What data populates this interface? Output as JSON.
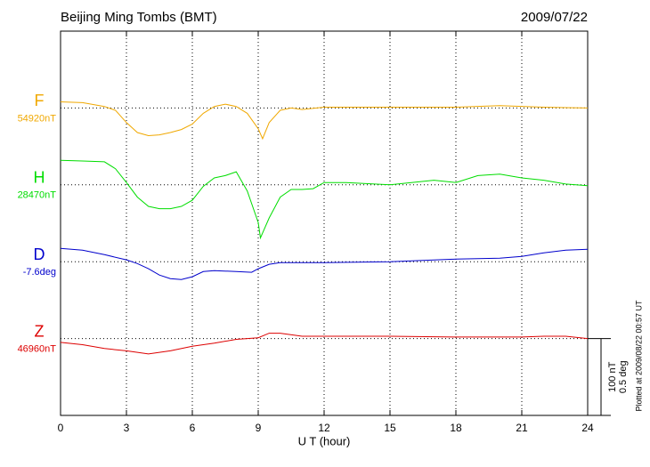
{
  "chart_data": {
    "type": "line",
    "title": "Beijing Ming Tombs (BMT)",
    "date": "2009/07/22",
    "xlabel": "U T (hour)",
    "footnote": "Plotted at 2009/08/22 00:57 UT",
    "xlim": [
      0,
      24
    ],
    "xticks": [
      0,
      3,
      6,
      9,
      12,
      15,
      18,
      21,
      24
    ],
    "grid": true,
    "scale_bar": [
      {
        "value": 100,
        "label": "100 nT"
      },
      {
        "value": 0.5,
        "label": "0.5 deg"
      }
    ],
    "series": [
      {
        "name": "F",
        "baseline_label": "54920nT",
        "color": "#f0a800",
        "ylim": [
          -400,
          100
        ],
        "x": [
          0,
          1,
          2,
          2.5,
          3,
          3.5,
          4,
          4.5,
          5,
          5.5,
          6,
          6.5,
          7,
          7.5,
          8,
          8.5,
          9,
          9.2,
          9.5,
          10,
          10.5,
          11,
          12,
          14,
          16,
          18,
          20,
          22,
          24
        ],
        "values": [
          8,
          7,
          2,
          -3,
          -19,
          -32,
          -36,
          -35,
          -32,
          -28,
          -21,
          -7,
          2,
          5,
          2,
          -7,
          -27,
          -40,
          -19,
          -3,
          0,
          -2,
          1,
          1,
          1,
          1,
          3,
          1,
          0
        ]
      },
      {
        "name": "H",
        "baseline_label": "28470nT",
        "color": "#00dd00",
        "ylim": [
          -300,
          200
        ],
        "x": [
          0,
          1,
          2,
          2.5,
          3,
          3.5,
          4,
          4.5,
          5,
          5.5,
          6,
          6.5,
          7,
          7.5,
          8,
          8.5,
          9,
          9.1,
          9.5,
          10,
          10.5,
          11,
          11.5,
          12,
          13,
          15,
          17,
          18,
          19,
          20,
          21,
          22,
          23,
          24
        ],
        "values": [
          32,
          31,
          30,
          21,
          3,
          -16,
          -28,
          -31,
          -31,
          -28,
          -20,
          -2,
          9,
          12,
          17,
          -8,
          -49,
          -69,
          -43,
          -16,
          -6,
          -6,
          -5,
          3,
          3,
          0,
          6,
          3,
          12,
          14,
          9,
          6,
          1,
          -1
        ]
      },
      {
        "name": "D",
        "baseline_label": "-7.6deg",
        "color": "#0000cc",
        "ylim": [
          -1.0,
          1.5
        ],
        "x": [
          0,
          1,
          2,
          3,
          3.5,
          4,
          4.5,
          5,
          5.5,
          6,
          6.5,
          7,
          8,
          8.7,
          9,
          9.5,
          10,
          12,
          15,
          18,
          20,
          21,
          22,
          23,
          24
        ],
        "values": [
          0.087,
          0.075,
          0.046,
          0.012,
          -0.012,
          -0.046,
          -0.087,
          -0.11,
          -0.116,
          -0.098,
          -0.064,
          -0.058,
          -0.064,
          -0.069,
          -0.046,
          -0.017,
          -0.006,
          -0.006,
          0,
          0.017,
          0.023,
          0.035,
          0.058,
          0.075,
          0.081
        ]
      },
      {
        "name": "Z",
        "baseline_label": "46960nT",
        "color": "#dd0000",
        "ylim": [
          -100,
          400
        ],
        "x": [
          0,
          1,
          2,
          3,
          4,
          5,
          6,
          7,
          8,
          9,
          9.5,
          10,
          11,
          12,
          15,
          18,
          21,
          22,
          23,
          24
        ],
        "values": [
          -5,
          -8,
          -13,
          -16,
          -20,
          -16,
          -10,
          -6,
          -1,
          1,
          7,
          7,
          3,
          3,
          3,
          2,
          2,
          3,
          3,
          0
        ]
      }
    ]
  }
}
